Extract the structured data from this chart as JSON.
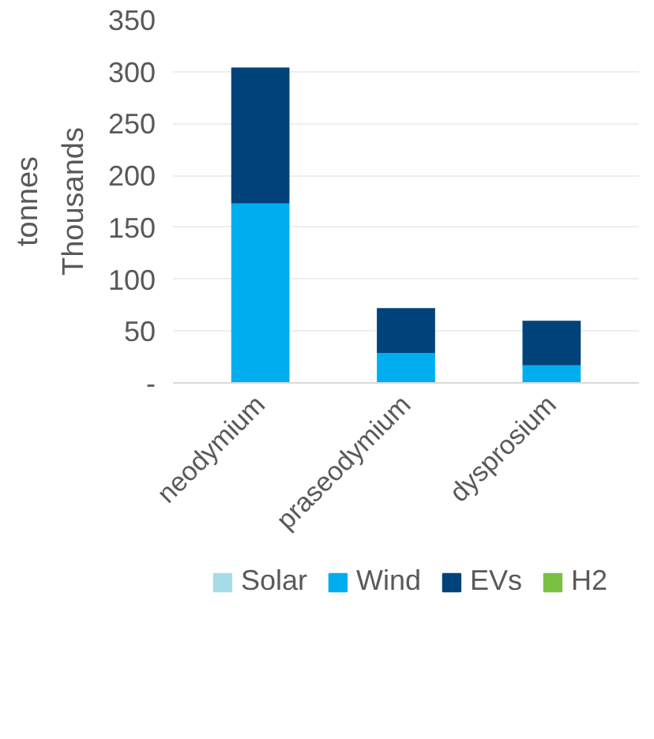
{
  "chart_data": {
    "type": "bar",
    "stacked": true,
    "ylabel": "tonnes",
    "annotations": [
      "Thousands"
    ],
    "categories": [
      "neodymium",
      "praseodymium",
      "dysprosium"
    ],
    "series": [
      {
        "name": "Solar",
        "color": "#a5dce8",
        "values": [
          0,
          0,
          0
        ]
      },
      {
        "name": "Wind",
        "color": "#00aeef",
        "values": [
          173,
          29,
          17
        ]
      },
      {
        "name": "EVs",
        "color": "#00427a",
        "values": [
          131,
          43,
          43
        ]
      },
      {
        "name": "H2",
        "color": "#7ac143",
        "values": [
          0,
          0,
          0
        ]
      }
    ],
    "ylim": [
      0,
      350
    ],
    "yticks": [
      {
        "value": 0,
        "label": "-"
      },
      50,
      100,
      150,
      200,
      250,
      300,
      350
    ],
    "grid": "y",
    "legend": "bottom"
  }
}
